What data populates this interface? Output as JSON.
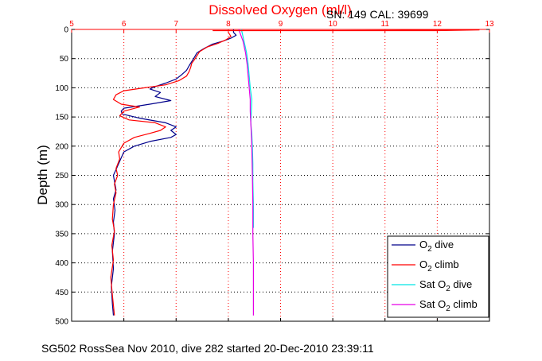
{
  "chart_data": {
    "type": "line",
    "title": "Dissolved Oxygen (ml/l)",
    "serial_label": "SN: 149  CAL: 39699",
    "ylabel": "Depth (m)",
    "caption": "SG502 RossSea Nov 2010, dive 282 started 20-Dec-2010 23:39:11",
    "xlim": [
      5,
      13
    ],
    "ylim": [
      0,
      500
    ],
    "y_reversed": true,
    "x_axis_position": "top",
    "x_ticks": [
      "5",
      "6",
      "7",
      "8",
      "9",
      "10",
      "11",
      "12",
      "13"
    ],
    "y_ticks": [
      "0",
      "50",
      "100",
      "150",
      "200",
      "250",
      "300",
      "350",
      "400",
      "450",
      "500"
    ],
    "grid": true,
    "legend_position": "bottom-right",
    "series": [
      {
        "name": "O2 dive",
        "legend_main": "O",
        "legend_sub": "2",
        "legend_rest": " dive",
        "color": "#00008b",
        "points": [
          [
            8.1,
            0
          ],
          [
            8.1,
            5
          ],
          [
            8.15,
            10
          ],
          [
            8.05,
            15
          ],
          [
            7.9,
            20
          ],
          [
            7.7,
            25
          ],
          [
            7.55,
            32
          ],
          [
            7.4,
            40
          ],
          [
            7.35,
            48
          ],
          [
            7.3,
            55
          ],
          [
            7.25,
            62
          ],
          [
            7.2,
            70
          ],
          [
            7.1,
            78
          ],
          [
            7.0,
            85
          ],
          [
            6.8,
            92
          ],
          [
            6.6,
            98
          ],
          [
            6.5,
            102
          ],
          [
            6.7,
            108
          ],
          [
            6.6,
            115
          ],
          [
            6.9,
            122
          ],
          [
            6.5,
            128
          ],
          [
            6.0,
            135
          ],
          [
            5.95,
            140
          ],
          [
            5.97,
            145
          ],
          [
            6.3,
            152
          ],
          [
            6.8,
            160
          ],
          [
            7.0,
            167
          ],
          [
            6.9,
            173
          ],
          [
            7.0,
            180
          ],
          [
            6.9,
            185
          ],
          [
            6.5,
            192
          ],
          [
            6.2,
            200
          ],
          [
            6.0,
            210
          ],
          [
            5.95,
            220
          ],
          [
            5.9,
            230
          ],
          [
            5.85,
            240
          ],
          [
            5.8,
            250
          ],
          [
            5.82,
            260
          ],
          [
            5.85,
            275
          ],
          [
            5.8,
            290
          ],
          [
            5.83,
            310
          ],
          [
            5.8,
            330
          ],
          [
            5.82,
            350
          ],
          [
            5.78,
            380
          ],
          [
            5.8,
            410
          ],
          [
            5.76,
            440
          ],
          [
            5.78,
            470
          ],
          [
            5.8,
            490
          ]
        ]
      },
      {
        "name": "O2 climb",
        "legend_main": "O",
        "legend_sub": "2",
        "legend_rest": " climb",
        "color": "#ff0000",
        "points": [
          [
            8.0,
            5
          ],
          [
            8.05,
            12
          ],
          [
            7.95,
            18
          ],
          [
            7.8,
            24
          ],
          [
            7.6,
            30
          ],
          [
            7.45,
            38
          ],
          [
            7.4,
            45
          ],
          [
            7.35,
            52
          ],
          [
            7.3,
            58
          ],
          [
            7.28,
            65
          ],
          [
            7.25,
            72
          ],
          [
            7.2,
            80
          ],
          [
            7.05,
            88
          ],
          [
            6.8,
            95
          ],
          [
            6.4,
            100
          ],
          [
            6.0,
            105
          ],
          [
            5.85,
            112
          ],
          [
            5.8,
            120
          ],
          [
            5.95,
            128
          ],
          [
            6.3,
            133
          ],
          [
            6.0,
            140
          ],
          [
            5.92,
            148
          ],
          [
            6.1,
            155
          ],
          [
            6.6,
            160
          ],
          [
            6.8,
            167
          ],
          [
            6.7,
            173
          ],
          [
            6.5,
            178
          ],
          [
            6.2,
            185
          ],
          [
            6.0,
            195
          ],
          [
            5.9,
            210
          ],
          [
            5.92,
            222
          ],
          [
            5.85,
            238
          ],
          [
            5.88,
            250
          ],
          [
            5.82,
            265
          ],
          [
            5.85,
            280
          ],
          [
            5.8,
            300
          ],
          [
            5.78,
            325
          ],
          [
            5.82,
            345
          ],
          [
            5.77,
            370
          ],
          [
            5.8,
            395
          ],
          [
            5.75,
            425
          ],
          [
            5.78,
            455
          ],
          [
            5.82,
            490
          ]
        ]
      },
      {
        "name": "Sat O2 dive",
        "legend_main": "Sat O",
        "legend_sub": "2",
        "legend_rest": " dive",
        "color": "#00e5e5",
        "points": [
          [
            8.25,
            0
          ],
          [
            8.3,
            20
          ],
          [
            8.35,
            40
          ],
          [
            8.38,
            60
          ],
          [
            8.4,
            80
          ],
          [
            8.42,
            100
          ],
          [
            8.45,
            120
          ],
          [
            8.44,
            140
          ],
          [
            8.43,
            160
          ],
          [
            8.45,
            180
          ],
          [
            8.46,
            200
          ],
          [
            8.47,
            230
          ],
          [
            8.47,
            260
          ],
          [
            8.48,
            300
          ],
          [
            8.48,
            340
          ]
        ]
      },
      {
        "name": "Sat O2 climb",
        "legend_main": "Sat O",
        "legend_sub": "2",
        "legend_rest": " climb",
        "color": "#e600e6",
        "points": [
          [
            8.2,
            0
          ],
          [
            8.28,
            20
          ],
          [
            8.33,
            40
          ],
          [
            8.36,
            60
          ],
          [
            8.38,
            80
          ],
          [
            8.4,
            100
          ],
          [
            8.42,
            120
          ],
          [
            8.42,
            140
          ],
          [
            8.43,
            160
          ],
          [
            8.44,
            180
          ],
          [
            8.45,
            200
          ],
          [
            8.46,
            250
          ],
          [
            8.47,
            300
          ],
          [
            8.47,
            350
          ],
          [
            8.48,
            400
          ],
          [
            8.48,
            450
          ],
          [
            8.48,
            490
          ]
        ]
      },
      {
        "name": "surface spike",
        "legend_main": "",
        "legend_sub": "",
        "legend_rest": "",
        "color": "#ff0000",
        "points": [
          [
            7.7,
            2
          ],
          [
            10.0,
            2
          ],
          [
            12.8,
            1
          ],
          [
            12.0,
            2
          ],
          [
            7.7,
            2
          ]
        ]
      }
    ]
  }
}
